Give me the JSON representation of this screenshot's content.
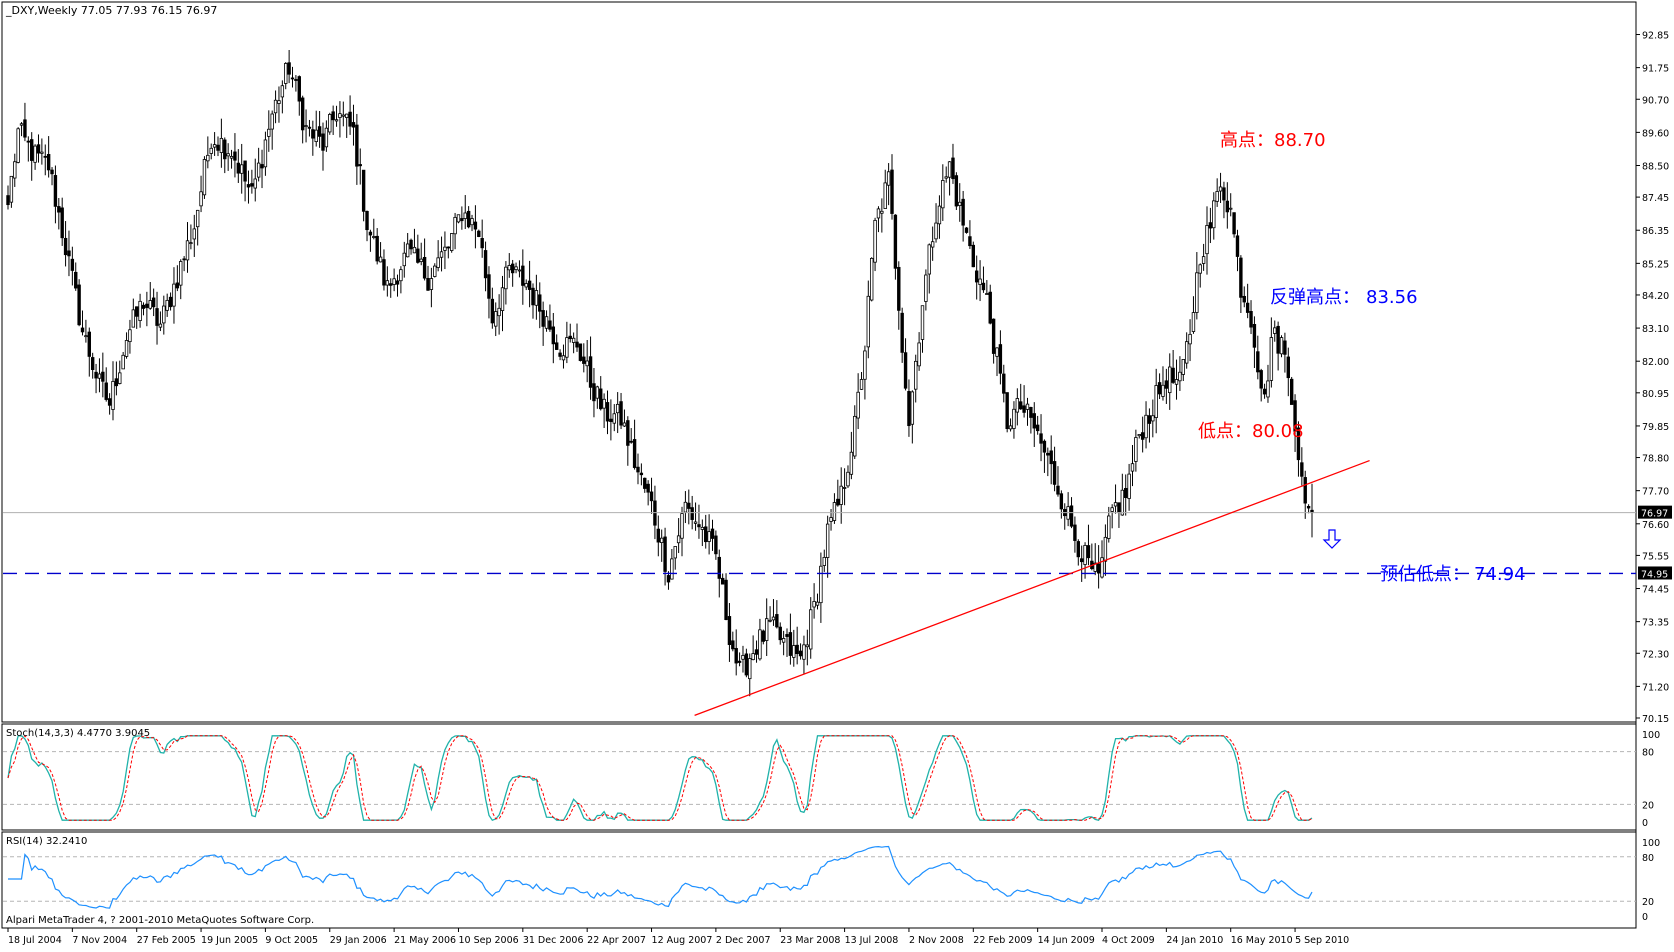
{
  "header": {
    "symbol_info": "_DXY,Weekly  77.05 77.93 76.15 76.97"
  },
  "footer": {
    "copyright": "Alpari MetaTrader 4, ? 2001-2010 MetaQuotes Software Corp."
  },
  "colors": {
    "background": "#ffffff",
    "candle": "#000000",
    "trendline": "#ff0000",
    "support_line": "#0000cc",
    "stoch_main": "#20b2aa",
    "stoch_signal": "#ff0000",
    "rsi": "#1e90ff",
    "annotation_red": "#ff0000",
    "annotation_blue": "#0000ff"
  },
  "chart_data": [
    {
      "type": "candlestick",
      "title": "_DXY,Weekly",
      "ohlc_last": {
        "open": 77.05,
        "high": 77.93,
        "low": 76.15,
        "close": 76.97
      },
      "ylim": [
        70.15,
        93.0
      ],
      "yticks": [
        "92.85",
        "91.75",
        "90.70",
        "89.60",
        "88.50",
        "87.45",
        "86.35",
        "85.25",
        "84.20",
        "83.10",
        "82.00",
        "80.95",
        "79.85",
        "78.80",
        "77.70",
        "76.60",
        "75.55",
        "74.45",
        "73.35",
        "72.30",
        "71.20",
        "70.15"
      ],
      "xticks": [
        "18 Jul 2004",
        "7 Nov 2004",
        "27 Feb 2005",
        "19 Jun 2005",
        "9 Oct 2005",
        "29 Jan 2006",
        "21 May 2006",
        "10 Sep 2006",
        "31 Dec 2006",
        "22 Apr 2007",
        "12 Aug 2007",
        "2 Dec 2007",
        "23 Mar 2008",
        "13 Jul 2008",
        "2 Nov 2008",
        "22 Feb 2009",
        "14 Jun 2009",
        "4 Oct 2009",
        "24 Jan 2010",
        "16 May 2010",
        "5 Sep 2010"
      ],
      "current_price_label": "76.97",
      "support_price_label": "74.95",
      "support_level": 74.95,
      "anchors": [
        [
          0,
          87.2
        ],
        [
          3,
          89.6
        ],
        [
          8,
          88.8
        ],
        [
          12,
          88.5
        ],
        [
          17,
          85.8
        ],
        [
          22,
          83.0
        ],
        [
          27,
          81.2
        ],
        [
          30,
          80.6
        ],
        [
          35,
          82.8
        ],
        [
          40,
          84.0
        ],
        [
          45,
          83.2
        ],
        [
          50,
          84.8
        ],
        [
          55,
          86.5
        ],
        [
          60,
          89.5
        ],
        [
          66,
          89.0
        ],
        [
          72,
          87.5
        ],
        [
          78,
          90.2
        ],
        [
          83,
          91.8
        ],
        [
          88,
          89.7
        ],
        [
          93,
          89.2
        ],
        [
          97,
          90.3
        ],
        [
          102,
          89.6
        ],
        [
          106,
          86.6
        ],
        [
          112,
          84.4
        ],
        [
          118,
          85.6
        ],
        [
          124,
          84.8
        ],
        [
          130,
          85.8
        ],
        [
          134,
          87.0
        ],
        [
          139,
          86.3
        ],
        [
          143,
          83.5
        ],
        [
          148,
          85.0
        ],
        [
          153,
          84.6
        ],
        [
          158,
          83.6
        ],
        [
          163,
          82.5
        ],
        [
          168,
          82.6
        ],
        [
          172,
          81.3
        ],
        [
          176,
          80.3
        ],
        [
          181,
          80.1
        ],
        [
          186,
          78.3
        ],
        [
          190,
          77.2
        ],
        [
          195,
          75.0
        ],
        [
          200,
          77.2
        ],
        [
          205,
          76.4
        ],
        [
          209,
          75.5
        ],
        [
          213,
          73.0
        ],
        [
          216,
          71.6
        ],
        [
          220,
          72.4
        ],
        [
          225,
          73.2
        ],
        [
          230,
          72.5
        ],
        [
          234,
          72.1
        ],
        [
          238,
          73.8
        ],
        [
          242,
          76.3
        ],
        [
          246,
          77.5
        ],
        [
          250,
          79.8
        ],
        [
          253,
          82.5
        ],
        [
          256,
          86.5
        ],
        [
          260,
          88.0
        ],
        [
          263,
          84.0
        ],
        [
          266,
          80.0
        ],
        [
          270,
          84.0
        ],
        [
          274,
          87.0
        ],
        [
          278,
          88.5
        ],
        [
          281,
          87.0
        ],
        [
          285,
          85.3
        ],
        [
          289,
          84.0
        ],
        [
          292,
          82.0
        ],
        [
          295,
          80.0
        ],
        [
          299,
          80.5
        ],
        [
          303,
          79.8
        ],
        [
          307,
          78.7
        ],
        [
          311,
          77.5
        ],
        [
          315,
          76.2
        ],
        [
          319,
          75.2
        ],
        [
          322,
          74.7
        ],
        [
          326,
          77.0
        ],
        [
          330,
          77.6
        ],
        [
          334,
          79.6
        ],
        [
          338,
          80.5
        ],
        [
          342,
          81.5
        ],
        [
          346,
          81.2
        ],
        [
          349,
          83.0
        ],
        [
          352,
          85.6
        ],
        [
          355,
          86.5
        ],
        [
          358,
          88.0
        ],
        [
          361,
          87.0
        ],
        [
          364,
          84.5
        ],
        [
          367,
          83.5
        ],
        [
          369,
          82.0
        ],
        [
          371,
          80.6
        ],
        [
          373,
          82.8
        ],
        [
          376,
          82.6
        ],
        [
          379,
          81.0
        ],
        [
          381,
          79.0
        ],
        [
          383,
          77.0
        ],
        [
          385,
          76.97
        ]
      ],
      "candle_count": 386,
      "trendline": {
        "from_index": 216,
        "from_value": 70.8,
        "to_index": 402,
        "to_value": 78.7
      },
      "annotations": [
        {
          "label": "高点：",
          "value": "88.70",
          "color": "red"
        },
        {
          "label": "反弹高点：",
          "value": "83.56",
          "color": "blue"
        },
        {
          "label": "低点：",
          "value": "80.08",
          "color": "red"
        },
        {
          "label": "预估低点：",
          "value": "74.94",
          "color": "blue"
        }
      ]
    },
    {
      "type": "line",
      "title": "Stoch(14,3,3) 4.4770 3.9045",
      "ylim": [
        0,
        100
      ],
      "yticks": [
        "100",
        "80",
        "20",
        "0"
      ],
      "last_main": 4.477,
      "last_signal": 3.9045
    },
    {
      "type": "line",
      "title": "RSI(14) 32.2410",
      "ylim": [
        0,
        100
      ],
      "yticks": [
        "100",
        "80",
        "20",
        "0"
      ],
      "last_value": 32.241
    }
  ]
}
